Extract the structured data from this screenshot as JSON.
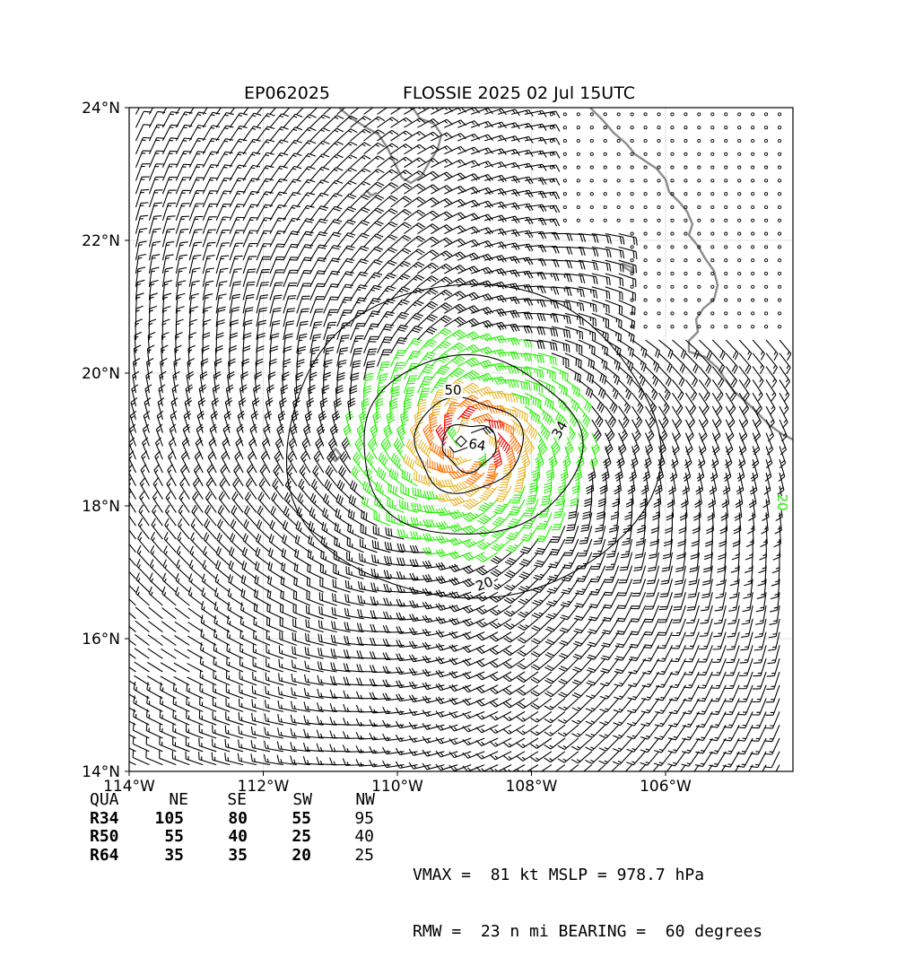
{
  "title": {
    "storm_id": "EP062025",
    "storm_label": "FLOSSIE 2025 02 Jul 15UTC"
  },
  "map": {
    "lon_range": [
      -114,
      -104.1
    ],
    "lat_range": [
      14,
      24
    ],
    "x_tick_labels": [
      "114°W",
      "112°W",
      "110°W",
      "108°W",
      "106°W"
    ],
    "y_tick_labels": [
      "24°N",
      "22°N",
      "20°N",
      "18°N",
      "16°N",
      "14°N"
    ],
    "grid": true,
    "contour_labels": [
      "20",
      "34",
      "50",
      "64",
      "20"
    ],
    "storm_center": {
      "lon": -108.9,
      "lat": 18.95
    },
    "wind_colors": {
      "below_34": "#000000",
      "34_to_50": "#22ee00",
      "50_to_64": "#e8b830",
      "64_plus": "#ff7000",
      "83_plus": "#ee0000"
    },
    "coastline_color": "#8c8c8c"
  },
  "wind_radii": {
    "headers": [
      "QUA",
      "NE",
      "SE",
      "SW",
      "NW"
    ],
    "rows": [
      {
        "label": "R34",
        "values": [
          "105",
          "80",
          "55",
          "95"
        ]
      },
      {
        "label": "R50",
        "values": [
          "55",
          "40",
          "25",
          "40"
        ]
      },
      {
        "label": "R64",
        "values": [
          "35",
          "35",
          "20",
          "25"
        ]
      }
    ]
  },
  "metrics": {
    "line1": "VMAX =  81 kt MSLP = 978.7 hPa",
    "line2": "RMW =  23 n mi BEARING =  60 degrees"
  }
}
